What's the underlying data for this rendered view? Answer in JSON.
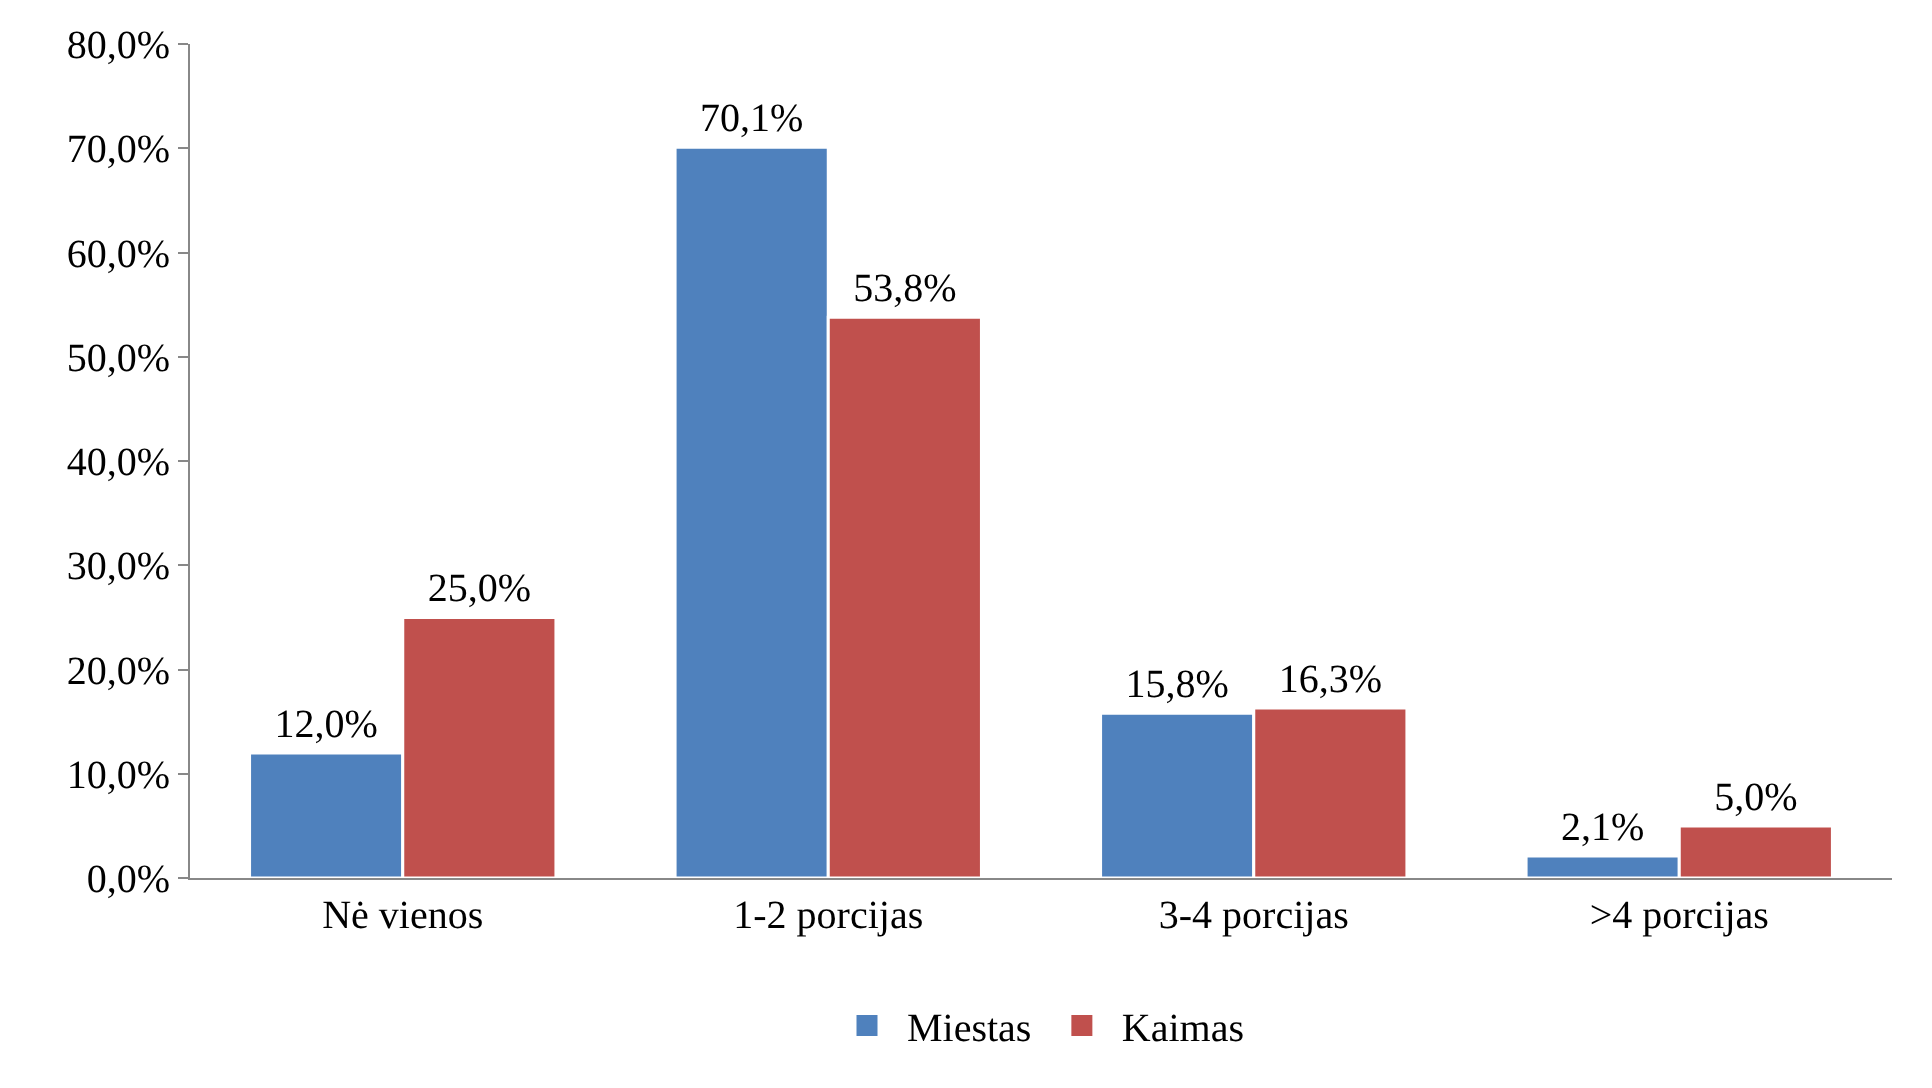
{
  "chart_data": {
    "type": "bar",
    "categories": [
      "Nė vienos",
      "1-2 porcijas",
      "3-4 porcijas",
      ">4 porcijas"
    ],
    "series": [
      {
        "name": "Miestas",
        "color": "#4f81bd",
        "values": [
          12.0,
          70.1,
          15.8,
          2.1
        ],
        "value_labels": [
          "12,0%",
          "70,1%",
          "15,8%",
          "2,1%"
        ]
      },
      {
        "name": "Kaimas",
        "color": "#c0504d",
        "values": [
          25.0,
          53.8,
          16.3,
          5.0
        ],
        "value_labels": [
          "25,0%",
          "53,8%",
          "16,3%",
          "5,0%"
        ]
      }
    ],
    "ylim": [
      0,
      80
    ],
    "yticks": [
      {
        "value": 0,
        "label": "0,0%"
      },
      {
        "value": 10,
        "label": "10,0%"
      },
      {
        "value": 20,
        "label": "20,0%"
      },
      {
        "value": 30,
        "label": "30,0%"
      },
      {
        "value": 40,
        "label": "40,0%"
      },
      {
        "value": 50,
        "label": "50,0%"
      },
      {
        "value": 60,
        "label": "60,0%"
      },
      {
        "value": 70,
        "label": "70,0%"
      },
      {
        "value": 80,
        "label": "80,0%"
      }
    ],
    "legend": "bottom"
  }
}
